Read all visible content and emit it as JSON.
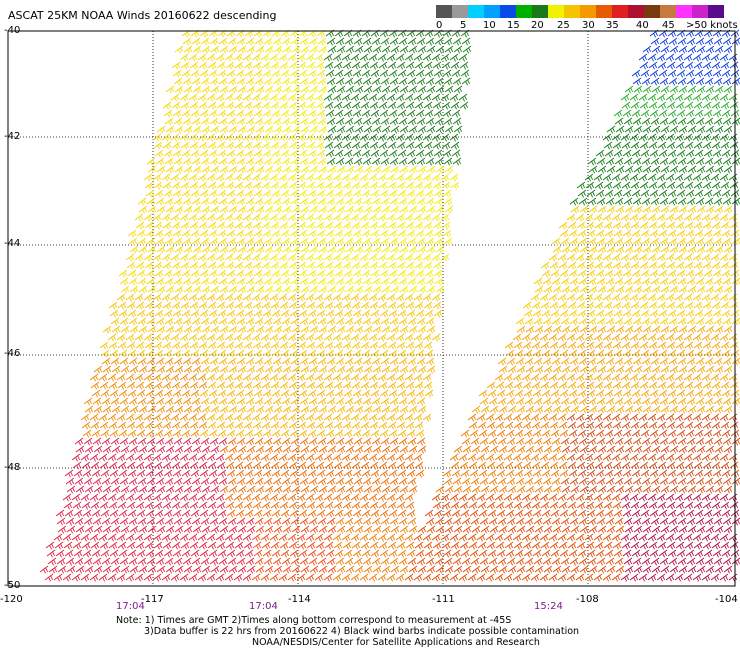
{
  "title": "ASCAT 25KM NOAA Winds 20160622 descending",
  "colorbar": {
    "colors": [
      "#555555",
      "#9a9a9a",
      "#00cfff",
      "#00a0ff",
      "#0a4ae8",
      "#00b000",
      "#1a7a1a",
      "#f2f200",
      "#f5c400",
      "#f49a00",
      "#e65a00",
      "#e02020",
      "#b01030",
      "#7a3a10",
      "#c77a40",
      "#ff33ff",
      "#cc22cc",
      "#5a0a8a"
    ],
    "labels": [
      "0",
      "5",
      "10",
      "15",
      "20",
      "25",
      "30",
      "35",
      "40",
      "45",
      ">50 knots"
    ]
  },
  "map": {
    "lat_labels": [
      "-40",
      "-42",
      "-44",
      "-46",
      "-48",
      "-50"
    ],
    "lon_labels": [
      "-120",
      "-117",
      "-114",
      "-111",
      "-108",
      "-104"
    ],
    "time_labels": [
      "17:04",
      "17:04",
      "15:24"
    ]
  },
  "notes": {
    "line1": "Note: 1) Times are GMT 2)Times along bottom correspond to measurement at -45S",
    "line2": "3)Data buffer is 22 hrs from 20160622 4) Black wind barbs indicate possible contamination",
    "line3": "NOAA/NESDIS/Center for Satellite Applications and Research"
  }
}
